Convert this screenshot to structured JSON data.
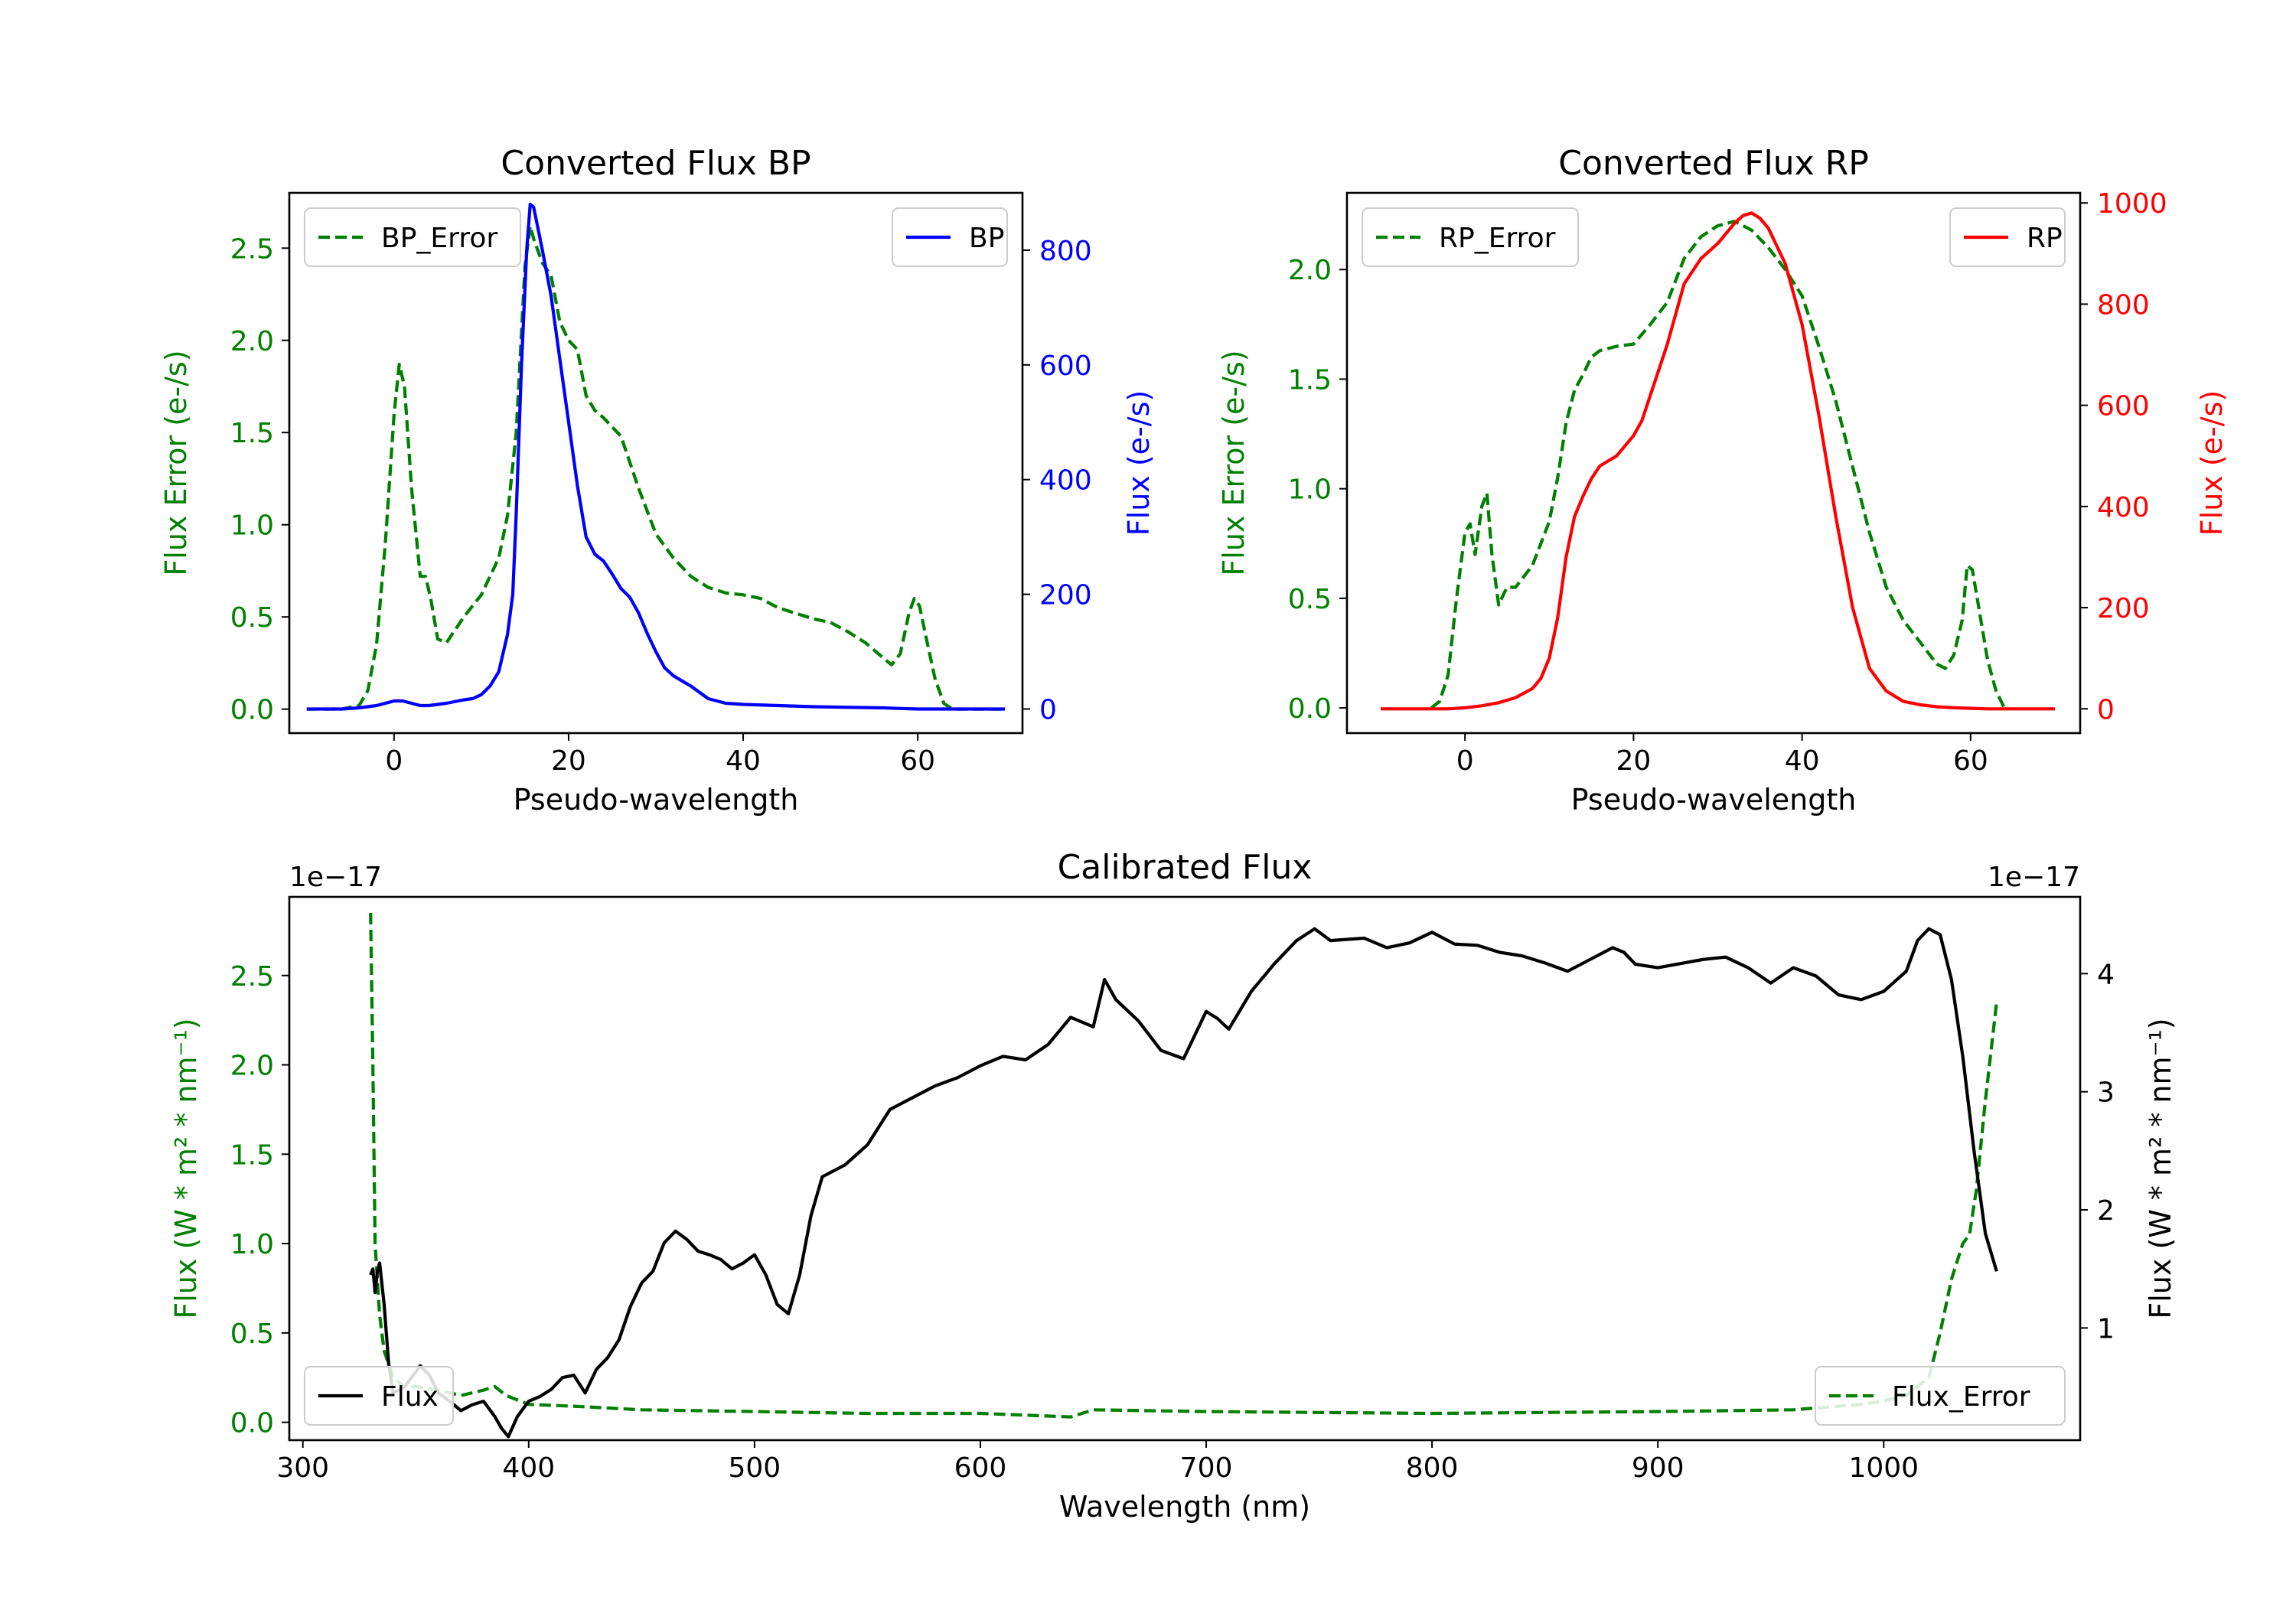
{
  "figure": {
    "panels": 3
  },
  "chart_data": [
    {
      "id": "bp",
      "type": "line",
      "title": "Converted Flux BP",
      "xlabel": "Pseudo-wavelength",
      "ylabel_left": "Flux Error (e-/s)",
      "ylabel_right": "Flux (e-/s)",
      "xlim": [
        -12,
        72
      ],
      "ylim_left": [
        -0.13,
        2.8
      ],
      "ylim_right": [
        -42,
        900
      ],
      "xticks": [
        0,
        20,
        40,
        60
      ],
      "xtick_labels": [
        "0",
        "20",
        "40",
        "60"
      ],
      "yticks_left": [
        0.0,
        0.5,
        1.0,
        1.5,
        2.0,
        2.5
      ],
      "ytick_labels_left": [
        "0.0",
        "0.5",
        "1.0",
        "1.5",
        "2.0",
        "2.5"
      ],
      "yticks_right": [
        0,
        200,
        400,
        600,
        800
      ],
      "ytick_labels_right": [
        "0",
        "200",
        "400",
        "600",
        "800"
      ],
      "left_color": "#008000",
      "right_color": "#0000ff",
      "legend_left": {
        "label": "BP_Error",
        "position": "upper-left"
      },
      "legend_right": {
        "label": "BP",
        "position": "upper-right"
      },
      "series": [
        {
          "name": "BP_Error",
          "axis": "left",
          "style": "dashed",
          "color": "#008000",
          "x": [
            -10,
            -6,
            -4,
            -3,
            -2,
            -1,
            0,
            0.6,
            1.2,
            2,
            3,
            3.6,
            4.2,
            5,
            6,
            8,
            10,
            12,
            13,
            14,
            15,
            15.6,
            16,
            17,
            18,
            19,
            20,
            21,
            22,
            23,
            24,
            26,
            28,
            30,
            32,
            34,
            36,
            38,
            40,
            42,
            44,
            46,
            48,
            50,
            52,
            54,
            56,
            57,
            58,
            59,
            59.6,
            60.2,
            61,
            62,
            63,
            64,
            66,
            68,
            70
          ],
          "y": [
            0,
            0,
            0.02,
            0.1,
            0.35,
            0.9,
            1.6,
            1.87,
            1.75,
            1.2,
            0.72,
            0.72,
            0.6,
            0.38,
            0.36,
            0.5,
            0.62,
            0.82,
            1.05,
            1.5,
            2.4,
            2.62,
            2.55,
            2.42,
            2.35,
            2.1,
            2.0,
            1.95,
            1.7,
            1.62,
            1.58,
            1.48,
            1.2,
            0.95,
            0.82,
            0.72,
            0.66,
            0.63,
            0.62,
            0.6,
            0.55,
            0.52,
            0.49,
            0.47,
            0.42,
            0.36,
            0.28,
            0.24,
            0.3,
            0.52,
            0.6,
            0.56,
            0.38,
            0.16,
            0.03,
            0,
            0,
            0,
            0
          ]
        },
        {
          "name": "BP",
          "axis": "right",
          "style": "solid",
          "color": "#0000ff",
          "x": [
            -10,
            -6,
            -4,
            -2,
            0,
            1,
            2,
            3,
            4,
            6,
            8,
            9,
            10,
            11,
            12,
            13,
            13.6,
            14,
            14.6,
            15.2,
            15.6,
            16,
            17,
            18,
            19,
            20,
            21,
            22,
            23,
            24,
            25,
            26,
            27,
            28,
            29,
            30,
            31,
            32,
            34,
            36,
            38,
            40,
            44,
            48,
            52,
            56,
            58,
            60,
            62,
            66,
            70
          ],
          "y": [
            0,
            0,
            2,
            6,
            14,
            14,
            10,
            6,
            6,
            10,
            16,
            18,
            25,
            40,
            65,
            130,
            200,
            340,
            600,
            800,
            880,
            875,
            800,
            720,
            610,
            500,
            390,
            300,
            270,
            258,
            235,
            210,
            195,
            168,
            132,
            100,
            72,
            58,
            40,
            18,
            10,
            8,
            6,
            4,
            3,
            2,
            1,
            0,
            0,
            0,
            0
          ]
        }
      ]
    },
    {
      "id": "rp",
      "type": "line",
      "title": "Converted Flux RP",
      "xlabel": "Pseudo-wavelength",
      "ylabel_left": "Flux Error (e-/s)",
      "ylabel_right": "Flux (e-/s)",
      "xlim": [
        -14,
        73
      ],
      "ylim_left": [
        -0.115,
        2.35
      ],
      "ylim_right": [
        -48,
        1020
      ],
      "xticks": [
        0,
        20,
        40,
        60
      ],
      "xtick_labels": [
        "0",
        "20",
        "40",
        "60"
      ],
      "yticks_left": [
        0.0,
        0.5,
        1.0,
        1.5,
        2.0
      ],
      "ytick_labels_left": [
        "0.0",
        "0.5",
        "1.0",
        "1.5",
        "2.0"
      ],
      "yticks_right": [
        0,
        200,
        400,
        600,
        800,
        1000
      ],
      "ytick_labels_right": [
        "0",
        "200",
        "400",
        "600",
        "800",
        "1000"
      ],
      "left_color": "#008000",
      "right_color": "#ff0000",
      "legend_left": {
        "label": "RP_Error",
        "position": "upper-left"
      },
      "legend_right": {
        "label": "RP",
        "position": "upper-right"
      },
      "series": [
        {
          "name": "RP_Error",
          "axis": "left",
          "style": "dashed",
          "color": "#008000",
          "x": [
            -4,
            -3,
            -2,
            -1,
            0,
            0.6,
            1.2,
            2,
            2.6,
            3.2,
            4,
            4.6,
            5,
            6,
            8,
            10,
            11,
            12,
            13,
            14,
            15,
            16,
            18,
            20,
            22,
            24,
            26,
            28,
            30,
            32,
            34,
            36,
            38,
            40,
            42,
            44,
            46,
            48,
            50,
            52,
            54,
            55,
            56,
            57,
            58,
            59,
            59.6,
            60.2,
            61,
            62,
            63,
            64
          ],
          "y": [
            0,
            0.03,
            0.15,
            0.5,
            0.8,
            0.84,
            0.7,
            0.92,
            0.98,
            0.7,
            0.47,
            0.52,
            0.55,
            0.55,
            0.65,
            0.85,
            1.05,
            1.3,
            1.45,
            1.52,
            1.6,
            1.63,
            1.65,
            1.66,
            1.75,
            1.85,
            2.05,
            2.15,
            2.2,
            2.22,
            2.18,
            2.1,
            2.0,
            1.88,
            1.65,
            1.4,
            1.1,
            0.8,
            0.55,
            0.4,
            0.3,
            0.25,
            0.2,
            0.18,
            0.24,
            0.4,
            0.65,
            0.63,
            0.45,
            0.22,
            0.08,
            0
          ]
        },
        {
          "name": "RP",
          "axis": "right",
          "style": "solid",
          "color": "#ff0000",
          "x": [
            -10,
            -4,
            -2,
            0,
            2,
            4,
            6,
            8,
            9,
            10,
            11,
            12,
            13,
            14,
            15,
            16,
            18,
            20,
            21,
            22,
            24,
            26,
            28,
            30,
            31,
            32,
            33,
            34,
            35,
            36,
            38,
            40,
            42,
            44,
            46,
            48,
            50,
            52,
            54,
            56,
            58,
            60,
            62,
            66,
            70
          ],
          "y": [
            0,
            0,
            0,
            2,
            6,
            12,
            22,
            40,
            60,
            100,
            180,
            300,
            380,
            420,
            455,
            480,
            500,
            540,
            570,
            620,
            720,
            840,
            890,
            920,
            940,
            960,
            975,
            980,
            970,
            950,
            880,
            760,
            580,
            380,
            200,
            80,
            35,
            15,
            8,
            4,
            2,
            1,
            0,
            0,
            0
          ]
        }
      ]
    },
    {
      "id": "calibrated",
      "type": "line",
      "title": "Calibrated Flux",
      "xlabel": "Wavelength (nm)",
      "ylabel_left": "Flux (W * m² * nm⁻¹)",
      "ylabel_right": "Flux (W * m² * nm⁻¹)",
      "offset_left": "1e−17",
      "offset_right": "1e−17",
      "xlim": [
        294,
        1087
      ],
      "ylim_left": [
        -0.1,
        2.94
      ],
      "ylim_right": [
        0.05,
        4.65
      ],
      "xticks": [
        300,
        400,
        500,
        600,
        700,
        800,
        900,
        1000
      ],
      "xtick_labels": [
        "300",
        "400",
        "500",
        "600",
        "700",
        "800",
        "900",
        "1000"
      ],
      "yticks_left": [
        0.0,
        0.5,
        1.0,
        1.5,
        2.0,
        2.5
      ],
      "ytick_labels_left": [
        "0.0",
        "0.5",
        "1.0",
        "1.5",
        "2.0",
        "2.5"
      ],
      "yticks_right": [
        1,
        2,
        3,
        4
      ],
      "ytick_labels_right": [
        "1",
        "2",
        "3",
        "4"
      ],
      "left_color": "#008000",
      "right_color": "#000000",
      "legend_left": {
        "label": "Flux",
        "position": "lower-left"
      },
      "legend_right": {
        "label": "Flux_Error",
        "position": "lower-right"
      },
      "series": [
        {
          "name": "Flux_Error",
          "axis": "left",
          "style": "dashed",
          "color": "#008000",
          "x": [
            330,
            331,
            332,
            334,
            336,
            340,
            345,
            350,
            360,
            370,
            380,
            385,
            390,
            400,
            420,
            450,
            500,
            550,
            600,
            640,
            650,
            700,
            800,
            900,
            960,
            990,
            1000,
            1010,
            1020,
            1025,
            1030,
            1035,
            1038,
            1041,
            1045,
            1050
          ],
          "y": [
            2.85,
            2.0,
            1.0,
            0.6,
            0.4,
            0.25,
            0.2,
            0.2,
            0.18,
            0.15,
            0.18,
            0.2,
            0.15,
            0.1,
            0.09,
            0.07,
            0.06,
            0.05,
            0.05,
            0.03,
            0.07,
            0.06,
            0.05,
            0.06,
            0.07,
            0.1,
            0.12,
            0.15,
            0.25,
            0.5,
            0.8,
            1.0,
            1.05,
            1.3,
            1.8,
            2.35
          ]
        },
        {
          "name": "Flux",
          "axis": "right",
          "style": "solid",
          "color": "#000000",
          "x": [
            330,
            331,
            332,
            333,
            334,
            336,
            338,
            340,
            345,
            352,
            356,
            360,
            365,
            370,
            375,
            380,
            385,
            388,
            391,
            395,
            400,
            405,
            410,
            415,
            420,
            425,
            430,
            435,
            440,
            445,
            450,
            455,
            460,
            465,
            470,
            475,
            480,
            485,
            490,
            495,
            500,
            505,
            510,
            515,
            520,
            525,
            530,
            540,
            550,
            560,
            570,
            580,
            590,
            600,
            610,
            620,
            630,
            640,
            650,
            655,
            660,
            670,
            680,
            690,
            700,
            705,
            710,
            720,
            730,
            740,
            748,
            755,
            770,
            780,
            790,
            800,
            805,
            810,
            820,
            830,
            840,
            850,
            860,
            870,
            880,
            885,
            890,
            900,
            920,
            930,
            940,
            950,
            960,
            970,
            980,
            990,
            1000,
            1010,
            1015,
            1020,
            1025,
            1030,
            1035,
            1040,
            1045,
            1050
          ],
          "y": [
            1.45,
            1.5,
            1.3,
            1.48,
            1.55,
            1.2,
            0.7,
            0.45,
            0.5,
            0.68,
            0.6,
            0.45,
            0.38,
            0.3,
            0.35,
            0.38,
            0.25,
            0.15,
            0.08,
            0.25,
            0.38,
            0.42,
            0.48,
            0.58,
            0.6,
            0.45,
            0.65,
            0.75,
            0.9,
            1.18,
            1.38,
            1.48,
            1.72,
            1.82,
            1.75,
            1.65,
            1.62,
            1.58,
            1.5,
            1.55,
            1.62,
            1.45,
            1.2,
            1.12,
            1.45,
            1.95,
            2.28,
            2.38,
            2.55,
            2.85,
            2.95,
            3.05,
            3.12,
            3.22,
            3.3,
            3.27,
            3.4,
            3.63,
            3.55,
            3.95,
            3.78,
            3.6,
            3.35,
            3.28,
            3.68,
            3.62,
            3.53,
            3.85,
            4.08,
            4.28,
            4.38,
            4.28,
            4.3,
            4.22,
            4.26,
            4.35,
            4.3,
            4.25,
            4.24,
            4.18,
            4.15,
            4.09,
            4.02,
            4.12,
            4.22,
            4.18,
            4.08,
            4.05,
            4.12,
            4.14,
            4.05,
            3.92,
            4.05,
            3.98,
            3.82,
            3.78,
            3.85,
            4.02,
            4.28,
            4.38,
            4.33,
            3.95,
            3.3,
            2.5,
            1.8,
            1.48
          ]
        }
      ]
    }
  ]
}
